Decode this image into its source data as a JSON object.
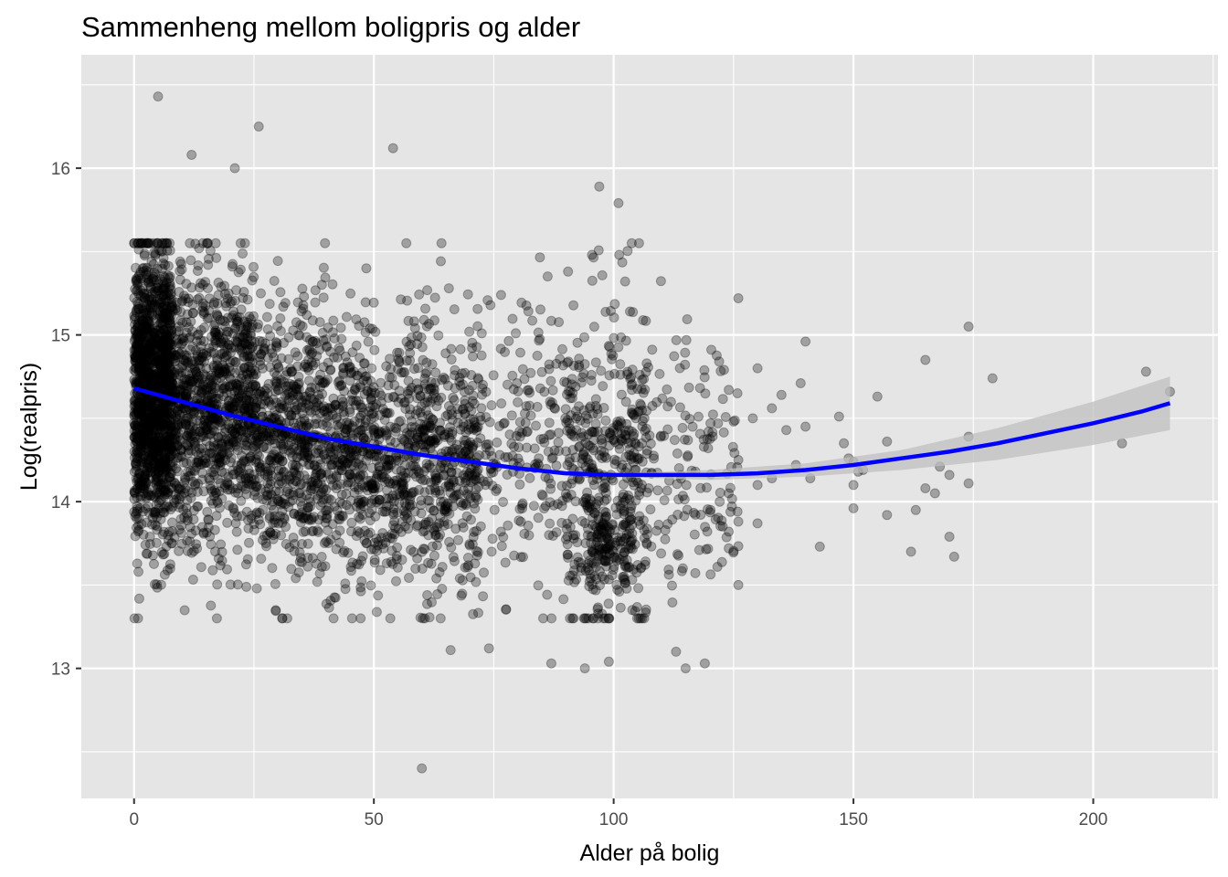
{
  "chart_data": {
    "type": "scatter",
    "title": "Sammenheng mellom boligpris og alder",
    "xlabel": "Alder på bolig",
    "ylabel": "Log(realpris)",
    "xlim": [
      -11,
      226
    ],
    "ylim": [
      12.22,
      16.68
    ],
    "x_ticks": [
      0,
      50,
      100,
      150,
      200
    ],
    "y_ticks": [
      13,
      14,
      15,
      16
    ],
    "grid": true,
    "point_color": "#000000",
    "point_opacity": 0.3,
    "panel_background": "#e5e5e5",
    "grid_color": "#ffffff",
    "smooth_color": "#0000ff",
    "ribbon_color": "#bfbfbf",
    "smooth_curve": {
      "x": [
        0,
        10,
        20,
        30,
        40,
        50,
        60,
        70,
        80,
        90,
        100,
        110,
        120,
        130,
        140,
        150,
        160,
        170,
        180,
        190,
        200,
        210,
        216
      ],
      "y": [
        14.68,
        14.6,
        14.52,
        14.45,
        14.38,
        14.33,
        14.28,
        14.24,
        14.2,
        14.17,
        14.16,
        14.16,
        14.16,
        14.17,
        14.19,
        14.22,
        14.26,
        14.3,
        14.35,
        14.41,
        14.47,
        14.54,
        14.59
      ]
    },
    "smooth_band": {
      "x": [
        100,
        120,
        140,
        160,
        180,
        200,
        216
      ],
      "lower": [
        14.15,
        14.13,
        14.15,
        14.19,
        14.25,
        14.34,
        14.43
      ],
      "upper": [
        14.17,
        14.19,
        14.23,
        14.31,
        14.44,
        14.6,
        14.75
      ]
    },
    "clusters": [
      {
        "x_min": 0,
        "x_max": 8,
        "y_mean": 14.7,
        "y_sd": 0.42,
        "count": 900
      },
      {
        "x_min": 0,
        "x_max": 25,
        "y_mean": 14.55,
        "y_sd": 0.4,
        "count": 1500
      },
      {
        "x_min": 25,
        "x_max": 50,
        "y_mean": 14.35,
        "y_sd": 0.4,
        "count": 1000
      },
      {
        "x_min": 50,
        "x_max": 72,
        "y_mean": 14.25,
        "y_sd": 0.4,
        "count": 700
      },
      {
        "x_min": 72,
        "x_max": 90,
        "y_mean": 14.3,
        "y_sd": 0.45,
        "count": 200
      },
      {
        "x_min": 90,
        "x_max": 107,
        "y_mean": 14.2,
        "y_sd": 0.5,
        "count": 450
      },
      {
        "x_min": 94,
        "x_max": 104,
        "y_mean": 13.75,
        "y_sd": 0.12,
        "count": 120
      },
      {
        "x_min": 107,
        "x_max": 126,
        "y_mean": 14.2,
        "y_sd": 0.4,
        "count": 140
      }
    ],
    "points": [
      {
        "x": 5,
        "y": 16.43
      },
      {
        "x": 26,
        "y": 16.25
      },
      {
        "x": 12,
        "y": 16.08
      },
      {
        "x": 54,
        "y": 16.12
      },
      {
        "x": 21,
        "y": 16.0
      },
      {
        "x": 60,
        "y": 12.4
      },
      {
        "x": 97,
        "y": 15.89
      },
      {
        "x": 101,
        "y": 15.79
      },
      {
        "x": 87,
        "y": 13.03
      },
      {
        "x": 94,
        "y": 13.0
      },
      {
        "x": 99,
        "y": 13.04
      },
      {
        "x": 113,
        "y": 13.1
      },
      {
        "x": 115,
        "y": 13.0
      },
      {
        "x": 119,
        "y": 13.03
      },
      {
        "x": 66,
        "y": 13.11
      },
      {
        "x": 74,
        "y": 13.12
      },
      {
        "x": 126,
        "y": 15.22
      },
      {
        "x": 140,
        "y": 14.96
      },
      {
        "x": 130,
        "y": 14.8
      },
      {
        "x": 133,
        "y": 14.56
      },
      {
        "x": 135,
        "y": 14.64
      },
      {
        "x": 139,
        "y": 14.71
      },
      {
        "x": 129,
        "y": 14.5
      },
      {
        "x": 136,
        "y": 14.43
      },
      {
        "x": 140,
        "y": 14.45
      },
      {
        "x": 138,
        "y": 14.22
      },
      {
        "x": 141,
        "y": 14.14
      },
      {
        "x": 130,
        "y": 14.1
      },
      {
        "x": 133,
        "y": 14.14
      },
      {
        "x": 123,
        "y": 14.79
      },
      {
        "x": 124,
        "y": 14.67
      },
      {
        "x": 122,
        "y": 14.84
      },
      {
        "x": 125,
        "y": 14.48
      },
      {
        "x": 126,
        "y": 14.25
      },
      {
        "x": 124,
        "y": 14.05
      },
      {
        "x": 126,
        "y": 13.88
      },
      {
        "x": 124,
        "y": 13.82
      },
      {
        "x": 124,
        "y": 13.72
      },
      {
        "x": 126,
        "y": 13.5
      },
      {
        "x": 130,
        "y": 13.87
      },
      {
        "x": 143,
        "y": 13.73
      },
      {
        "x": 147,
        "y": 14.51
      },
      {
        "x": 148,
        "y": 14.35
      },
      {
        "x": 149,
        "y": 14.26
      },
      {
        "x": 150,
        "y": 14.24
      },
      {
        "x": 151,
        "y": 14.18
      },
      {
        "x": 152,
        "y": 14.19
      },
      {
        "x": 150,
        "y": 14.1
      },
      {
        "x": 150,
        "y": 13.96
      },
      {
        "x": 155,
        "y": 14.63
      },
      {
        "x": 157,
        "y": 14.36
      },
      {
        "x": 157,
        "y": 13.92
      },
      {
        "x": 162,
        "y": 13.7
      },
      {
        "x": 163,
        "y": 13.95
      },
      {
        "x": 165,
        "y": 14.85
      },
      {
        "x": 165,
        "y": 14.08
      },
      {
        "x": 167,
        "y": 14.05
      },
      {
        "x": 168,
        "y": 14.21
      },
      {
        "x": 170,
        "y": 14.16
      },
      {
        "x": 170,
        "y": 13.79
      },
      {
        "x": 171,
        "y": 13.67
      },
      {
        "x": 174,
        "y": 15.05
      },
      {
        "x": 174,
        "y": 14.39
      },
      {
        "x": 174,
        "y": 14.11
      },
      {
        "x": 179,
        "y": 14.74
      },
      {
        "x": 206,
        "y": 14.35
      },
      {
        "x": 211,
        "y": 14.78
      },
      {
        "x": 216,
        "y": 14.66
      }
    ]
  }
}
